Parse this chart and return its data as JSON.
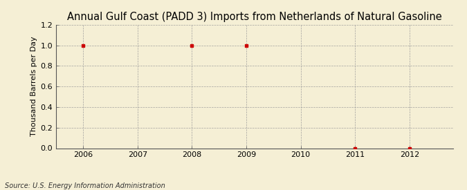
{
  "title": "Annual Gulf Coast (PADD 3) Imports from Netherlands of Natural Gasoline",
  "ylabel": "Thousand Barrels per Day",
  "source": "Source: U.S. Energy Information Administration",
  "xmin": 2005.5,
  "xmax": 2012.8,
  "ymin": 0.0,
  "ymax": 1.2,
  "yticks": [
    0.0,
    0.2,
    0.4,
    0.6,
    0.8,
    1.0,
    1.2
  ],
  "xticks": [
    2006,
    2007,
    2008,
    2009,
    2010,
    2011,
    2012
  ],
  "data_x": [
    2006,
    2008,
    2009,
    2011,
    2012
  ],
  "data_y": [
    1.0,
    1.0,
    1.0,
    0.0,
    0.0
  ],
  "marker_color": "#cc0000",
  "marker": "s",
  "marker_size": 3.5,
  "bg_color": "#f5efd5",
  "grid_color": "#999999",
  "title_fontsize": 10.5,
  "label_fontsize": 8,
  "tick_fontsize": 8,
  "source_fontsize": 7
}
